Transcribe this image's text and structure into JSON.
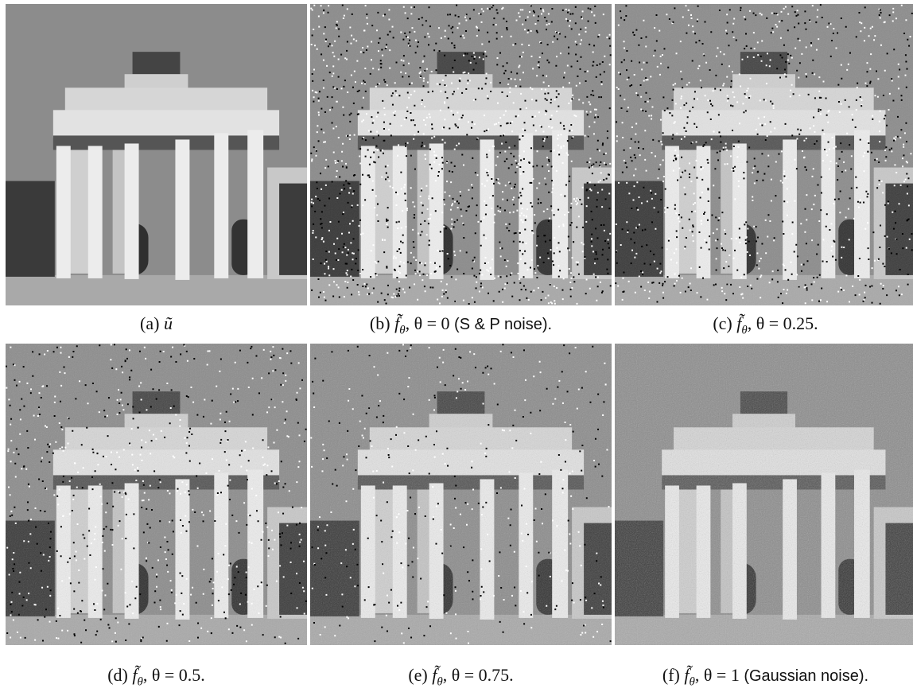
{
  "figure": {
    "panels": [
      {
        "label": "(a)",
        "symbol": "ũ"
      },
      {
        "label": "(b)",
        "symbol": "f̃",
        "subscript": "θ",
        "equation": ", θ = 0",
        "note": "(S & P noise)."
      },
      {
        "label": "(c)",
        "symbol": "f̃",
        "subscript": "θ",
        "equation": ", θ = 0.25."
      },
      {
        "label": "(d)",
        "symbol": "f̃",
        "subscript": "θ",
        "equation": ", θ = 0.5."
      },
      {
        "label": "(e)",
        "symbol": "f̃",
        "subscript": "θ",
        "equation": ", θ = 0.75."
      },
      {
        "label": "(f)",
        "symbol": "f̃",
        "subscript": "θ",
        "equation": ", θ = 1",
        "note": "(Gaussian noise)."
      }
    ]
  }
}
